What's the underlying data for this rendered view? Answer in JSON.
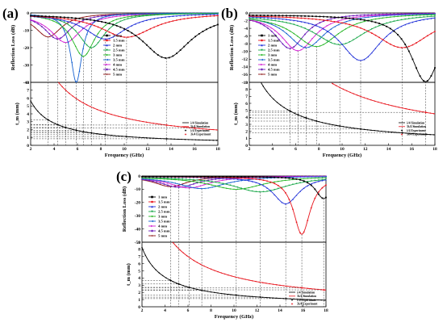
{
  "figure": {
    "panels": [
      {
        "letter": "(a)",
        "rl": {
          "ylabel": "Reflection Loss (dB)",
          "xlim": [
            2,
            18
          ],
          "ylim": [
            -40,
            0
          ],
          "yticks": [
            0,
            -10,
            -20,
            -30,
            -40
          ],
          "dips": [
            3.5,
            4.3,
            5.0,
            5.9,
            6.5,
            7.2,
            8.4,
            10.2,
            13.6
          ],
          "depths": [
            -13.8,
            -15,
            -17,
            -40,
            -25,
            -20,
            -15,
            -14,
            -26
          ],
          "widths": [
            1.4,
            1.4,
            1.6,
            0.6,
            1.2,
            1.4,
            2.2,
            2.8,
            2.6
          ]
        },
        "tm": {
          "ylabel": "t_m (mm)",
          "xlabel": "Frequency (GHz)",
          "xlim": [
            2,
            18
          ],
          "ylim": [
            0,
            8
          ],
          "yticks": [
            0,
            1,
            2,
            3,
            4,
            5,
            6,
            7,
            8
          ],
          "xticks": [
            2,
            4,
            6,
            8,
            10,
            12,
            14,
            16,
            18
          ],
          "quarter_coeff": 11.3,
          "three_quarter_coeff": 35,
          "exp_quarter_x": [
            3.5,
            4.3,
            5.0,
            5.9,
            6.5,
            7.2,
            8.4,
            10.2,
            13.6
          ],
          "exp_three_quarter_x": [
            13.6,
            16.0
          ]
        }
      },
      {
        "letter": "(b)",
        "rl": {
          "ylabel": "Reflection Loss (dB)",
          "xlim": [
            2,
            18
          ],
          "ylim": [
            -18,
            0
          ],
          "yticks": [
            0,
            -2,
            -4,
            -6,
            -8,
            -10,
            -12,
            -14,
            -16,
            -18
          ],
          "dips": [
            5.5,
            6.2,
            6.9,
            7.8,
            9.8,
            11.6,
            15.2,
            17.2
          ],
          "depths": [
            -9.2,
            -9.8,
            -9,
            -8.7,
            -8.2,
            -12.3,
            -9,
            -17.8
          ],
          "widths": [
            1.6,
            1.8,
            2.0,
            2.4,
            2.8,
            2.2,
            3.0,
            1.6
          ]
        },
        "tm": {
          "ylabel": "t_m (mm)",
          "xlabel": "Frequency (GHz)",
          "xlim": [
            2,
            18
          ],
          "ylim": [
            0,
            9
          ],
          "yticks": [
            0,
            1,
            2,
            3,
            4,
            5,
            6,
            7,
            8,
            9
          ],
          "xticks": [
            2,
            4,
            6,
            8,
            10,
            12,
            14,
            16,
            18
          ],
          "quarter_coeff": 27,
          "three_quarter_coeff": 81,
          "exp_quarter_x": [
            5.5,
            6.2,
            6.9,
            7.8,
            9.8,
            11.6,
            15.2
          ],
          "exp_three_quarter_x": [
            17.2
          ]
        }
      },
      {
        "letter": "(c)",
        "rl": {
          "ylabel": "Reflection Loss (dB)",
          "xlim": [
            2,
            18
          ],
          "ylim": [
            -50,
            0
          ],
          "yticks": [
            0,
            -10,
            -20,
            -30,
            -40,
            -50
          ],
          "dips": [
            4.5,
            5.2,
            6.1,
            7.2,
            10.2,
            12.3,
            14.5,
            15.9,
            17.8
          ],
          "depths": [
            -8,
            -8.5,
            -9,
            -9.5,
            -10,
            -12,
            -21,
            -44,
            -17
          ],
          "widths": [
            1.8,
            2.0,
            2.2,
            2.6,
            3.0,
            3.0,
            1.4,
            0.9,
            0.9
          ]
        },
        "tm": {
          "ylabel": "t_m (mm)",
          "xlabel": "Frequency (GHz)",
          "xlim": [
            2,
            18
          ],
          "ylim": [
            0,
            9
          ],
          "yticks": [
            0,
            1,
            2,
            3,
            4,
            5,
            6,
            7,
            8,
            9
          ],
          "xticks": [
            2,
            4,
            6,
            8,
            10,
            12,
            14,
            16,
            18
          ],
          "quarter_coeff": 16.5,
          "three_quarter_coeff": 42,
          "exp_quarter_x": [
            4.5,
            5.2,
            6.1,
            7.2,
            10.2,
            12.3,
            14.5
          ],
          "exp_three_quarter_x": [
            15.9,
            17.8
          ]
        }
      }
    ]
  },
  "chart_data": [
    {
      "type": "line",
      "panel": "(a)",
      "ylabel": "Reflection Loss (dB)",
      "xlabel": "Frequency (GHz)",
      "series_names": [
        "1 mm",
        "1.5 mm",
        "2 mm",
        "2.5 mm",
        "3 mm",
        "3.5 mm",
        "4 mm",
        "4.5 mm",
        "5 mm"
      ],
      "min_rl_points": [
        {
          "thickness": "5 mm",
          "x": 3.5,
          "y": -13.8
        },
        {
          "thickness": "4.5 mm",
          "x": 4.3,
          "y": -15
        },
        {
          "thickness": "4 mm",
          "x": 5.0,
          "y": -17
        },
        {
          "thickness": "3.5 mm",
          "x": 5.9,
          "y": -40
        },
        {
          "thickness": "3 mm",
          "x": 6.5,
          "y": -25
        },
        {
          "thickness": "2.5 mm",
          "x": 7.2,
          "y": -20
        },
        {
          "thickness": "2 mm",
          "x": 8.4,
          "y": -15
        },
        {
          "thickness": "1.5 mm",
          "x": 10.2,
          "y": -14
        },
        {
          "thickness": "1 mm",
          "x": 13.6,
          "y": -26
        }
      ],
      "tm_legend": [
        "λ/4 Simulation",
        "3λ/4 Simulation",
        "λ/4 Experiment",
        "3λ/4 Experiment"
      ]
    },
    {
      "type": "line",
      "panel": "(b)",
      "ylabel": "Reflection Loss (dB)",
      "xlabel": "Frequency (GHz)",
      "series_names": [
        "1 mm",
        "1.5 mm",
        "2 mm",
        "2.5 mm",
        "3 mm",
        "3.5 mm",
        "4 mm",
        "4.5 mm",
        "5 mm"
      ],
      "min_rl_points": [
        {
          "x": 5.5,
          "y": -9.2
        },
        {
          "x": 6.2,
          "y": -9.8
        },
        {
          "x": 6.9,
          "y": -9
        },
        {
          "x": 7.8,
          "y": -8.7
        },
        {
          "x": 9.8,
          "y": -8.2
        },
        {
          "x": 11.6,
          "y": -12.3
        },
        {
          "x": 15.2,
          "y": -9
        },
        {
          "x": 17.2,
          "y": -17.8
        }
      ],
      "tm_legend": [
        "λ/4 Simulation",
        "3λ/4 Simulation",
        "λ/4 Experiment",
        "3λ/4 Experiment"
      ]
    },
    {
      "type": "line",
      "panel": "(c)",
      "ylabel": "Reflection Loss (dB)",
      "xlabel": "Frequency (GHz)",
      "series_names": [
        "1 mm",
        "1.5 mm",
        "2 mm",
        "2.5 mm",
        "3 mm",
        "3.5 mm",
        "4 mm",
        "4.5 mm",
        "5 mm"
      ],
      "min_rl_points": [
        {
          "x": 4.5,
          "y": -8
        },
        {
          "x": 5.2,
          "y": -8.5
        },
        {
          "x": 6.1,
          "y": -9
        },
        {
          "x": 7.2,
          "y": -9.5
        },
        {
          "x": 10.2,
          "y": -10
        },
        {
          "x": 12.3,
          "y": -12
        },
        {
          "x": 14.5,
          "y": -21
        },
        {
          "x": 15.9,
          "y": -44
        },
        {
          "x": 17.8,
          "y": -17
        }
      ],
      "tm_legend": [
        "λ/4 Simulation",
        "3λ/4 Simulation",
        "λ/4 Experiment",
        "3λ/4 Experiment"
      ]
    }
  ],
  "series": [
    {
      "name": "1 mm",
      "color": "#000000",
      "marker": "square"
    },
    {
      "name": "1.5 mm",
      "color": "#e8141c",
      "marker": "circle"
    },
    {
      "name": "2 mm",
      "color": "#2030d8",
      "marker": "triangle"
    },
    {
      "name": "2.5 mm",
      "color": "#1aa84a",
      "marker": "tri-down"
    },
    {
      "name": "3 mm",
      "color": "#22b522",
      "marker": "diamond"
    },
    {
      "name": "3.5 mm",
      "color": "#1560d0",
      "marker": "tri-left"
    },
    {
      "name": "4 mm",
      "color": "#d21ed2",
      "marker": "tri-right"
    },
    {
      "name": "4.5 mm",
      "color": "#6a1ab8",
      "marker": "hexagon"
    },
    {
      "name": "5 mm",
      "color": "#8a1010",
      "marker": "star"
    }
  ],
  "tm_legend": [
    {
      "label": "λ/4 Simulation",
      "color": "#000000"
    },
    {
      "label": "3λ/4 Simulation",
      "color": "#e8141c"
    },
    {
      "label": "λ/4 Experiment",
      "color": "#000000"
    },
    {
      "label": "3λ/4 Experiment",
      "color": "#e8141c"
    }
  ]
}
